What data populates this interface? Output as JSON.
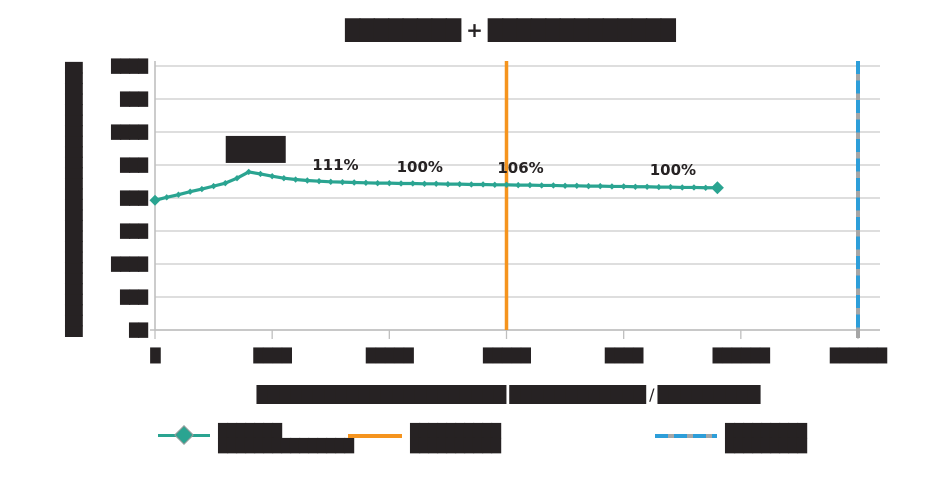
{
  "title": "████████ + █████████████",
  "y_axis_title": "██████████████████████████",
  "x_axis_title": "██████████████████████ ████████████ / █████████",
  "colors": {
    "series_teal": "#2AA491",
    "vline_orange": "#F5941E",
    "vline_blue": "#2D9ED9",
    "gridline": "#D9D9D9",
    "axis": "#BFBFBF",
    "text": "#262223"
  },
  "chart_data": {
    "type": "line",
    "title": "████████ + █████████████",
    "xlabel": "██████████████████████ ████████████ / █████████",
    "ylabel": "██████████████████████████",
    "xlim": [
      0,
      3000
    ],
    "ylim": [
      60,
      140
    ],
    "y_grid_step": 10,
    "x_tick_step": 500,
    "grid": true,
    "legend_position": "bottom",
    "x_tick_labels": [
      "█",
      "████",
      "█████",
      "█████",
      "████",
      "██████",
      "██████"
    ],
    "y_tick_labels": [
      "████",
      "███",
      "████",
      "███",
      "███",
      "███",
      "████",
      "███",
      "██"
    ],
    "x": [
      0,
      50,
      100,
      150,
      200,
      250,
      300,
      350,
      400,
      450,
      500,
      550,
      600,
      650,
      700,
      750,
      800,
      850,
      900,
      950,
      1000,
      1050,
      1100,
      1150,
      1200,
      1250,
      1300,
      1350,
      1400,
      1450,
      1500,
      1550,
      1600,
      1650,
      1700,
      1750,
      1800,
      1850,
      1900,
      1950,
      2000,
      2050,
      2100,
      2150,
      2200,
      2250,
      2300,
      2350,
      2400
    ],
    "series": [
      {
        "name": "███████ ██████████████",
        "color": "#2AA491",
        "marker": "diamond",
        "values": [
          99.3,
          100.2,
          101.0,
          101.9,
          102.7,
          103.6,
          104.5,
          106.0,
          107.9,
          107.3,
          106.6,
          106.0,
          105.6,
          105.3,
          105.1,
          104.9,
          104.8,
          104.7,
          104.6,
          104.5,
          104.5,
          104.4,
          104.4,
          104.3,
          104.3,
          104.2,
          104.2,
          104.1,
          104.1,
          104.0,
          104.0,
          103.9,
          103.9,
          103.8,
          103.8,
          103.7,
          103.7,
          103.6,
          103.6,
          103.5,
          103.5,
          103.4,
          103.4,
          103.3,
          103.3,
          103.2,
          103.2,
          103.1,
          103.1
        ]
      }
    ],
    "data_labels": [
      {
        "x": 400,
        "text": "██████",
        "blob": true
      },
      {
        "x": 770,
        "text": "111%"
      },
      {
        "x": 1130,
        "text": "100%"
      },
      {
        "x": 1560,
        "text": "106%"
      },
      {
        "x": 2210,
        "text": "100%"
      }
    ],
    "vlines": [
      {
        "x": 1500,
        "color": "#F5941E",
        "style": "solid",
        "name": "orange-vline"
      },
      {
        "x": 3000,
        "color": "#2D9ED9",
        "style": "dashed",
        "name": "blue-dashed-vline"
      }
    ]
  },
  "legend": {
    "items": [
      {
        "line1": "███████",
        "line2": "███████████████",
        "color": "#2AA491",
        "style": "solid-diamond"
      },
      {
        "line1": "██████████",
        "line2": "██████████",
        "color": "#F5941E",
        "style": "solid"
      },
      {
        "line1": "█████████",
        "line2": "█████████",
        "color": "#2D9ED9",
        "style": "dashed"
      }
    ]
  }
}
